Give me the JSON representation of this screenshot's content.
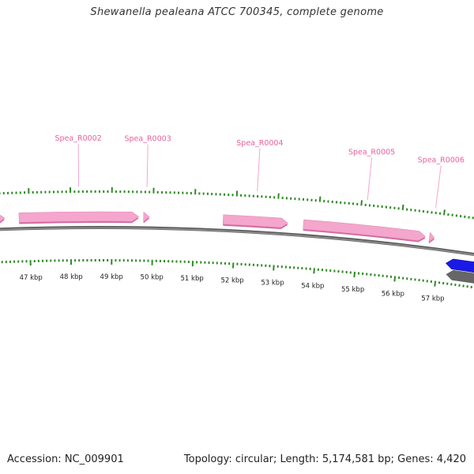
{
  "title": "Shewanella pealeana ATCC 700345, complete genome",
  "footer": {
    "accession": "Accession: NC_009901",
    "stats": "Topology: circular; Length: 5,174,581 bp; Genes: 4,420"
  },
  "colors": {
    "rna_gene": "#f4a6cc",
    "rna_gene_dark": "#d2679f",
    "rna_label": "#e8609e",
    "cds_gene": "#1a1ae6",
    "backbone": "#8a8a8a",
    "tick": "#2e8b22",
    "kbp_label": "#222222"
  },
  "scale": {
    "start_kbp": 46,
    "end_kbp": 58,
    "labels": [
      {
        "kbp": 47,
        "text": "47 kbp"
      },
      {
        "kbp": 48,
        "text": "48 kbp"
      },
      {
        "kbp": 49,
        "text": "49 kbp"
      },
      {
        "kbp": 50,
        "text": "50 kbp"
      },
      {
        "kbp": 51,
        "text": "51 kbp"
      },
      {
        "kbp": 52,
        "text": "52 kbp"
      },
      {
        "kbp": 53,
        "text": "53 kbp"
      },
      {
        "kbp": 54,
        "text": "54 kbp"
      },
      {
        "kbp": 55,
        "text": "55 kbp"
      },
      {
        "kbp": 56,
        "text": "56 kbp"
      },
      {
        "kbp": 57,
        "text": "57 kbp"
      }
    ]
  },
  "features": [
    {
      "id": "rna-0",
      "kind": "rna",
      "strand": "+",
      "start_kbp": 46.0,
      "end_kbp": 46.4,
      "label": ""
    },
    {
      "id": "rna-1",
      "kind": "rna",
      "strand": "+",
      "start_kbp": 46.75,
      "end_kbp": 49.65,
      "label": "Spea_R0002"
    },
    {
      "id": "rna-2",
      "kind": "rna",
      "strand": "+",
      "start_kbp": 49.77,
      "end_kbp": 49.91,
      "label": "Spea_R0003"
    },
    {
      "id": "rna-3",
      "kind": "rna",
      "strand": "+",
      "start_kbp": 51.7,
      "end_kbp": 53.27,
      "label": "Spea_R0004"
    },
    {
      "id": "rna-4",
      "kind": "rna",
      "strand": "+",
      "start_kbp": 53.65,
      "end_kbp": 56.62,
      "label": "Spea_R0005"
    },
    {
      "id": "rna-5",
      "kind": "rna",
      "strand": "+",
      "start_kbp": 56.72,
      "end_kbp": 56.84,
      "label": "Spea_R0006"
    },
    {
      "id": "cds-0",
      "kind": "cds",
      "strand": "-",
      "start_kbp": 57.2,
      "end_kbp": 58.0,
      "label": ""
    }
  ]
}
